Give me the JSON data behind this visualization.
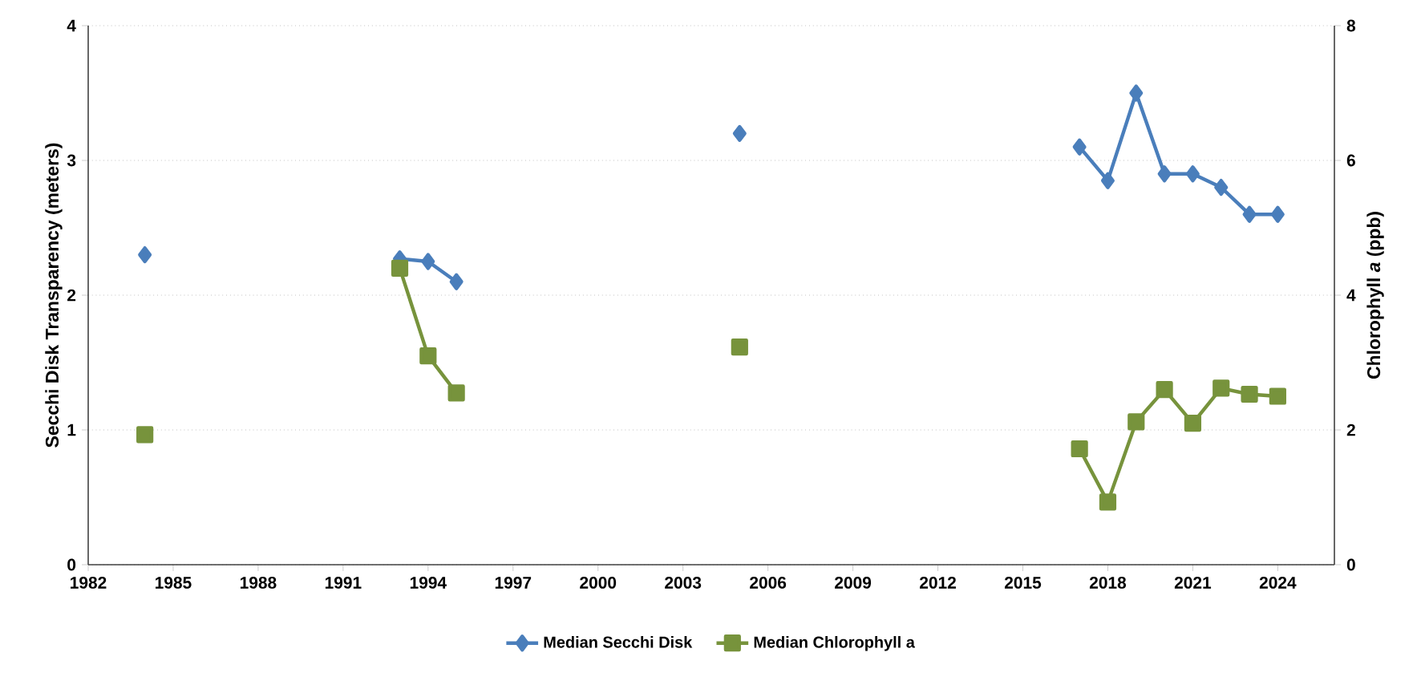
{
  "chart_data": {
    "type": "line",
    "xlabel": null,
    "ylabel": "Secchi Disk Transparency (meters)",
    "y2label": "Chlorophyll *a* (ppb)",
    "x": [
      1984,
      1985,
      1986,
      1987,
      1988,
      1989,
      1990,
      1991,
      1992,
      1993,
      1994,
      1995,
      1996,
      1997,
      1998,
      1999,
      2000,
      2001,
      2002,
      2003,
      2004,
      2005,
      2006,
      2007,
      2008,
      2009,
      2010,
      2011,
      2012,
      2013,
      2014,
      2015,
      2016,
      2017,
      2018,
      2019,
      2020,
      2021,
      2022,
      2023,
      2024
    ],
    "series": [
      {
        "name": "Median Secchi Disk",
        "color": "#4a7ebb",
        "marker": "diamond",
        "values": [
          2.3,
          null,
          null,
          null,
          null,
          null,
          null,
          null,
          null,
          2.27,
          2.25,
          2.1,
          null,
          null,
          null,
          null,
          null,
          null,
          null,
          null,
          null,
          3.2,
          null,
          null,
          null,
          null,
          null,
          null,
          null,
          null,
          null,
          null,
          null,
          3.1,
          2.85,
          3.5,
          2.9,
          2.9,
          2.8,
          2.6,
          2.6
        ]
      },
      {
        "name": "Median Chlorophyll a",
        "color": "#77933c",
        "marker": "square",
        "axis": "y2",
        "values": [
          1.93,
          null,
          null,
          null,
          null,
          null,
          null,
          null,
          null,
          4.4,
          3.1,
          2.55,
          null,
          null,
          null,
          null,
          null,
          null,
          null,
          null,
          null,
          3.23,
          null,
          null,
          null,
          null,
          null,
          null,
          null,
          null,
          null,
          null,
          null,
          1.72,
          0.93,
          2.12,
          2.6,
          2.1,
          2.62,
          2.53,
          2.5
        ]
      }
    ],
    "xlim": [
      1982,
      2026
    ],
    "xticks": [
      1982,
      1985,
      1988,
      1991,
      1994,
      1997,
      2000,
      2003,
      2006,
      2009,
      2012,
      2015,
      2018,
      2021,
      2024
    ],
    "ylim": [
      0,
      4
    ],
    "yticks": [
      0,
      1,
      2,
      3,
      4
    ],
    "y2lim": [
      0,
      8
    ],
    "y2ticks": [
      0,
      2,
      4,
      6,
      8
    ],
    "grid": "y",
    "legend": "bottom"
  }
}
